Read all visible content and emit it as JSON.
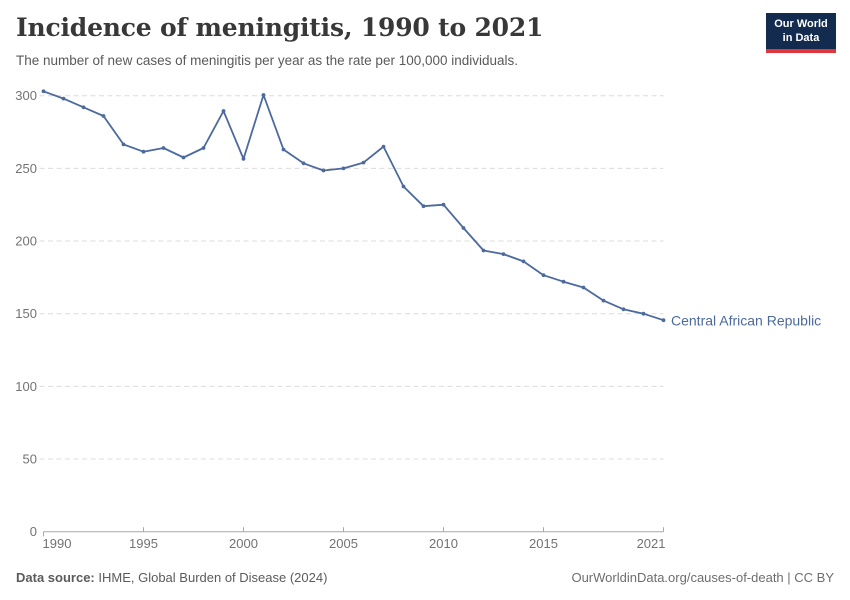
{
  "header": {
    "title": "Incidence of meningitis, 1990 to 2021",
    "subtitle": "The number of new cases of meningitis per year as the rate per 100,000 individuals.",
    "logo": {
      "line1": "Our World",
      "line2": "in Data",
      "bg_color": "#122b4e",
      "accent_color": "#e0363c"
    }
  },
  "chart_data": {
    "type": "line",
    "title": "Incidence of meningitis, 1990 to 2021",
    "xlabel": "",
    "ylabel": "",
    "x": [
      1990,
      1991,
      1992,
      1993,
      1994,
      1995,
      1996,
      1997,
      1998,
      1999,
      2000,
      2001,
      2002,
      2003,
      2004,
      2005,
      2006,
      2007,
      2008,
      2009,
      2010,
      2011,
      2012,
      2013,
      2014,
      2015,
      2016,
      2017,
      2018,
      2019,
      2020,
      2021
    ],
    "series": [
      {
        "name": "Central African Republic",
        "color": "#4c6a9d",
        "values": [
          303,
          298,
          292,
          286,
          266.5,
          261.5,
          264,
          257.5,
          264,
          289.5,
          256.5,
          300.5,
          263,
          253.5,
          248.5,
          250,
          254,
          265,
          237.5,
          224,
          225,
          209,
          193.5,
          191,
          186,
          176.5,
          172,
          168,
          159,
          153,
          150,
          145.5
        ]
      }
    ],
    "ylim": [
      0,
      300
    ],
    "yticks": [
      0,
      50,
      100,
      150,
      200,
      250,
      300
    ],
    "xticks": [
      1990,
      1995,
      2000,
      2005,
      2010,
      2015,
      2021
    ],
    "grid": "horizontal-dashed",
    "legend_position": "end-of-line-label"
  },
  "colors": {
    "grid": "#dcdcdc",
    "axis": "#a8a8a8",
    "tick_label": "#737373",
    "title": "#383838",
    "subtitle": "#5a5a5a",
    "footer": "#5b5b5b"
  },
  "footer": {
    "datasource_label": "Data source:",
    "datasource_value": "IHME, Global Burden of Disease (2024)",
    "credit": "OurWorldinData.org/causes-of-death | CC BY"
  }
}
